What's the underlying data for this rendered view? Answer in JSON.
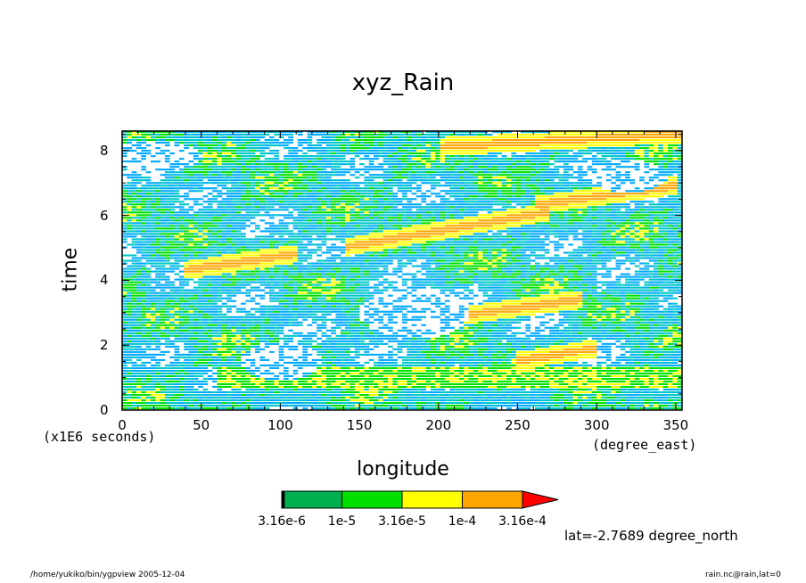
{
  "chart_data": {
    "type": "heatmap",
    "title": "xyz_Rain",
    "xlabel": "longitude",
    "ylabel": "time",
    "x_unit": "(degree_east)",
    "y_unit": "(x1E6 seconds)",
    "xlim": [
      0,
      354
    ],
    "ylim": [
      0,
      8.6
    ],
    "xticks": [
      0,
      50,
      100,
      150,
      200,
      250,
      300,
      350
    ],
    "yticks": [
      0,
      2,
      4,
      6,
      8
    ],
    "annotation": "lat=-2.7689 degree_north",
    "colorbar": {
      "levels": [
        3.16e-06,
        1e-05,
        3.16e-05,
        0.0001,
        0.000316
      ],
      "colors": [
        "#000000",
        "#00b050",
        "#00e000",
        "#ffff00",
        "#ffa500",
        "#ff0000"
      ],
      "labels": [
        "3.16e-6",
        "1e-5",
        "3.16e-5",
        "1e-4",
        "3.16e-4"
      ]
    },
    "features": [
      {
        "kind": "band",
        "x": [
          0,
          354
        ],
        "y": [
          0.05,
          0.6
        ],
        "level": 1
      },
      {
        "kind": "band",
        "x": [
          60,
          354
        ],
        "y": [
          0.7,
          1.3
        ],
        "level": 3
      },
      {
        "kind": "streak",
        "x0": 140,
        "y0": 5.0,
        "x1": 270,
        "y1": 6.1,
        "level": 5
      },
      {
        "kind": "streak",
        "x0": 260,
        "y0": 6.3,
        "x1": 350,
        "y1": 6.9,
        "level": 5
      },
      {
        "kind": "streak",
        "x0": 40,
        "y0": 4.3,
        "x1": 110,
        "y1": 4.8,
        "level": 5
      },
      {
        "kind": "streak",
        "x0": 200,
        "y0": 2.8,
        "x1": 290,
        "y1": 3.4,
        "level": 5
      },
      {
        "kind": "streak",
        "x0": 200,
        "y0": 8.1,
        "x1": 354,
        "y1": 8.5,
        "level": 5
      },
      {
        "kind": "streak",
        "x0": 250,
        "y0": 1.5,
        "x1": 300,
        "y1": 1.9,
        "level": 5
      },
      {
        "kind": "gap",
        "x": 20,
        "y": 7.8,
        "r": [
          30,
          0.5
        ]
      },
      {
        "kind": "gap",
        "x": 185,
        "y": 3.0,
        "r": [
          35,
          0.8
        ]
      },
      {
        "kind": "gap",
        "x": 320,
        "y": 7.2,
        "r": [
          25,
          0.5
        ]
      },
      {
        "kind": "gap",
        "x": 100,
        "y": 1.5,
        "r": [
          25,
          0.6
        ]
      }
    ]
  },
  "footer_left": "/home/yukiko/bin/ygpview  2005-12-04",
  "footer_right": "rain.nc@rain,lat=0"
}
